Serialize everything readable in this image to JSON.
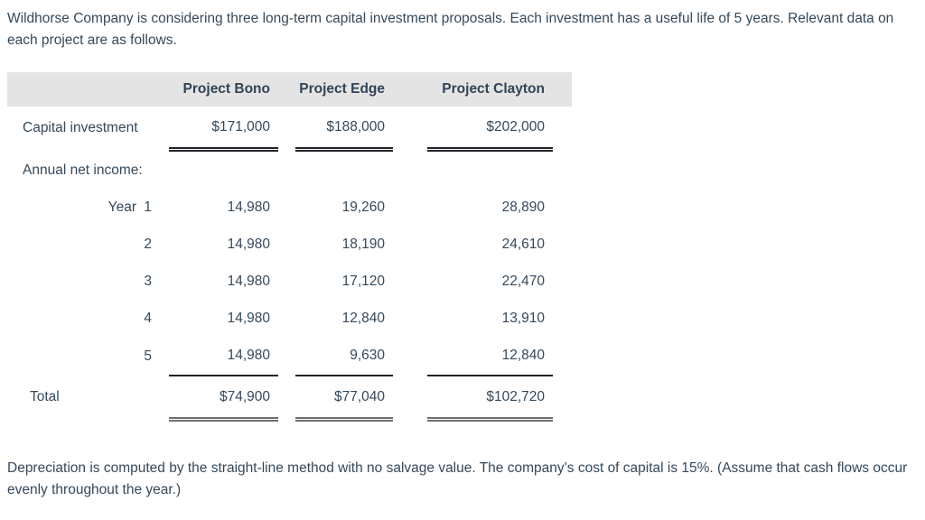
{
  "page": {
    "intro_text": "Wildhorse Company is considering three long-term capital investment proposals. Each investment has a useful life of 5 years. Relevant data on each project are as follows.",
    "footer_text": "Depreciation is computed by the straight-line method with no salvage value. The company’s cost of capital is 15%. (Assume that cash flows occur evenly throughout the year.)"
  },
  "table": {
    "columns": [
      "Project Bono",
      "Project Edge",
      "Project Clayton"
    ],
    "capital": {
      "label": "Capital investment",
      "values": [
        "$171,000",
        "$188,000",
        "$202,000"
      ]
    },
    "annual_label": "Annual net income:",
    "year_word": "Year",
    "years": [
      {
        "year": "1",
        "values": [
          "14,980",
          "19,260",
          "28,890"
        ]
      },
      {
        "year": "2",
        "values": [
          "14,980",
          "18,190",
          "24,610"
        ]
      },
      {
        "year": "3",
        "values": [
          "14,980",
          "17,120",
          "22,470"
        ]
      },
      {
        "year": "4",
        "values": [
          "14,980",
          "12,840",
          "13,910"
        ]
      },
      {
        "year": "5",
        "values": [
          "14,980",
          "9,630",
          "12,840"
        ]
      }
    ],
    "total": {
      "label": "Total",
      "values": [
        "$74,900",
        "$77,040",
        "$102,720"
      ]
    }
  },
  "colors": {
    "text": "#35495a",
    "header_band": "#e4e4e4",
    "rule_dark": "#1f2227",
    "rule_total_gray": "#6e6e6e"
  }
}
